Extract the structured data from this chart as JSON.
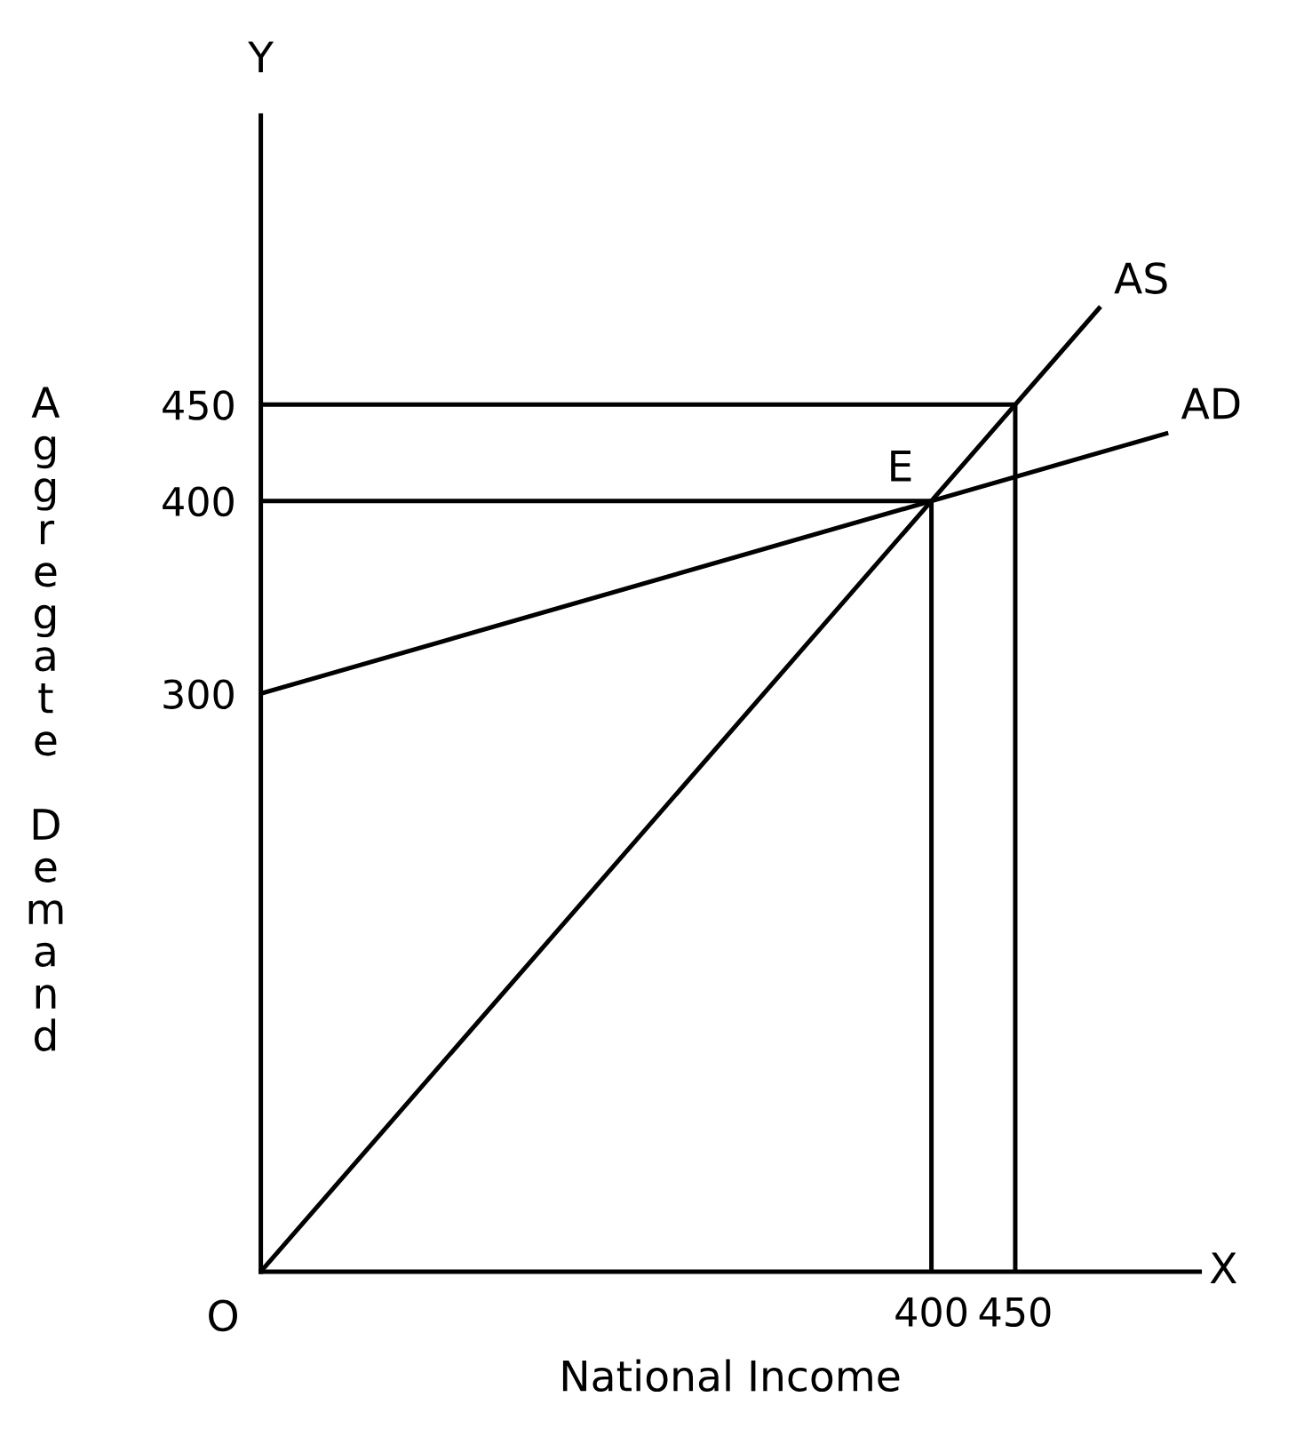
{
  "chart_data": {
    "type": "line",
    "xlabel": "National Income",
    "ylabel": "Aggregate Demand",
    "xlim": [
      0,
      560
    ],
    "ylim": [
      0,
      600
    ],
    "xticks": [
      400,
      450
    ],
    "yticks": [
      300,
      400,
      450
    ],
    "grid": false,
    "legend": false,
    "marker": "none",
    "line_style": "solid",
    "series": [
      {
        "name": "AS",
        "color": "#000000",
        "x": [
          0,
          500
        ],
        "values": [
          0,
          500
        ]
      },
      {
        "name": "AD",
        "color": "#000000",
        "x": [
          0,
          540
        ],
        "values": [
          300,
          435
        ]
      },
      {
        "color": "#000000",
        "x": [
          0,
          450,
          450
        ],
        "values": [
          450,
          450,
          0
        ]
      },
      {
        "color": "#000000",
        "x": [
          0,
          400,
          400
        ],
        "values": [
          400,
          400,
          0
        ]
      }
    ],
    "annotations": [
      {
        "text": "E",
        "x": 400,
        "y": 400
      },
      {
        "text": "O",
        "x": 0,
        "y": 0
      },
      "X",
      "Y"
    ]
  }
}
